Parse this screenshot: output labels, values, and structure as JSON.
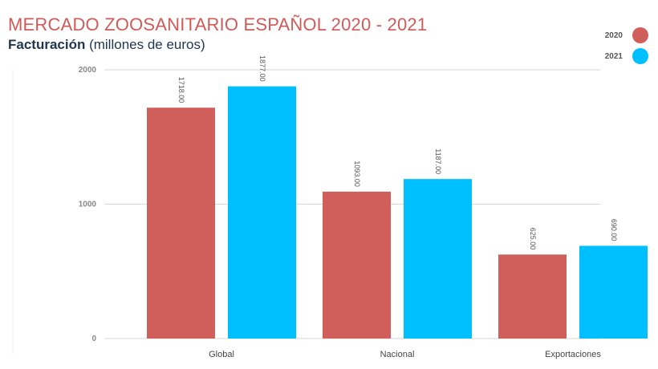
{
  "header": {
    "title": "MERCADO ZOOSANITARIO ESPAÑOL 2020 - 2021",
    "subtitle_bold": "Facturación",
    "subtitle_rest": " (millones de euros)"
  },
  "colors": {
    "title": "#d05a58",
    "subtitle": "#1f3550",
    "series_2020": "#d05f5c",
    "series_2021": "#00bfff",
    "grid": "#d6d6d6",
    "axis_text": "#888888"
  },
  "chart_data": {
    "type": "bar",
    "title": "MERCADO ZOOSANITARIO ESPAÑOL 2020 - 2021",
    "subtitle": "Facturación (millones de euros)",
    "categories": [
      "Global",
      "Nacional",
      "Exportaciones"
    ],
    "series": [
      {
        "name": "2020",
        "color": "#d05f5c",
        "values": [
          1718,
          1093,
          625
        ],
        "labels": [
          "1718.00",
          "1093.00",
          "625.00"
        ]
      },
      {
        "name": "2021",
        "color": "#00bfff",
        "values": [
          1877,
          1187,
          690
        ],
        "labels": [
          "1877.00",
          "1187.00",
          "690.00"
        ]
      }
    ],
    "yticks": [
      0,
      1000,
      2000
    ],
    "ylim": [
      0,
      2000
    ],
    "grid": true,
    "legend_position": "top-right"
  }
}
